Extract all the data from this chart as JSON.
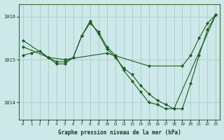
{
  "xlabel": "Graphe pression niveau de la mer (hPa)",
  "background_color": "#cce8e8",
  "grid_color": "#aacccc",
  "line_color": "#1a5c1a",
  "marker_color": "#1a5c1a",
  "xlim": [
    -0.5,
    23.5
  ],
  "ylim": [
    1013.6,
    1016.3
  ],
  "xticks": [
    0,
    1,
    2,
    3,
    4,
    5,
    6,
    7,
    8,
    9,
    10,
    11,
    12,
    13,
    14,
    15,
    16,
    17,
    18,
    19,
    20,
    21,
    22,
    23
  ],
  "yticks": [
    1014,
    1015,
    1016
  ],
  "series": [
    {
      "x": [
        0,
        3,
        5,
        10,
        15,
        19,
        20,
        21,
        22,
        23
      ],
      "y": [
        1015.3,
        1015.05,
        1015.0,
        1015.15,
        1014.85,
        1014.85,
        1015.1,
        1015.5,
        1015.85,
        1016.05
      ]
    },
    {
      "x": [
        0,
        1,
        2,
        3,
        4,
        5,
        6,
        7,
        8,
        9,
        10,
        11,
        12,
        13,
        14,
        15,
        16,
        17,
        18,
        19,
        20,
        21,
        22,
        23
      ],
      "y": [
        1015.1,
        1015.15,
        1015.2,
        1015.05,
        1014.95,
        1014.95,
        1015.05,
        1015.55,
        1015.9,
        1015.6,
        1015.25,
        1015.05,
        1014.8,
        1014.65,
        1014.4,
        1014.2,
        1014.05,
        1013.95,
        1013.85,
        1013.85,
        1014.45,
        1015.1,
        1015.7,
        1016.05
      ]
    },
    {
      "x": [
        0,
        3,
        4,
        5,
        6,
        7,
        8,
        9,
        10,
        11,
        12,
        13,
        14,
        15,
        16,
        17,
        18,
        23
      ],
      "y": [
        1015.45,
        1015.05,
        1014.9,
        1014.9,
        1015.05,
        1015.55,
        1015.85,
        1015.65,
        1015.3,
        1015.1,
        1014.75,
        1014.5,
        1014.25,
        1014.0,
        1013.95,
        1013.85,
        1013.85,
        1016.05
      ]
    }
  ]
}
